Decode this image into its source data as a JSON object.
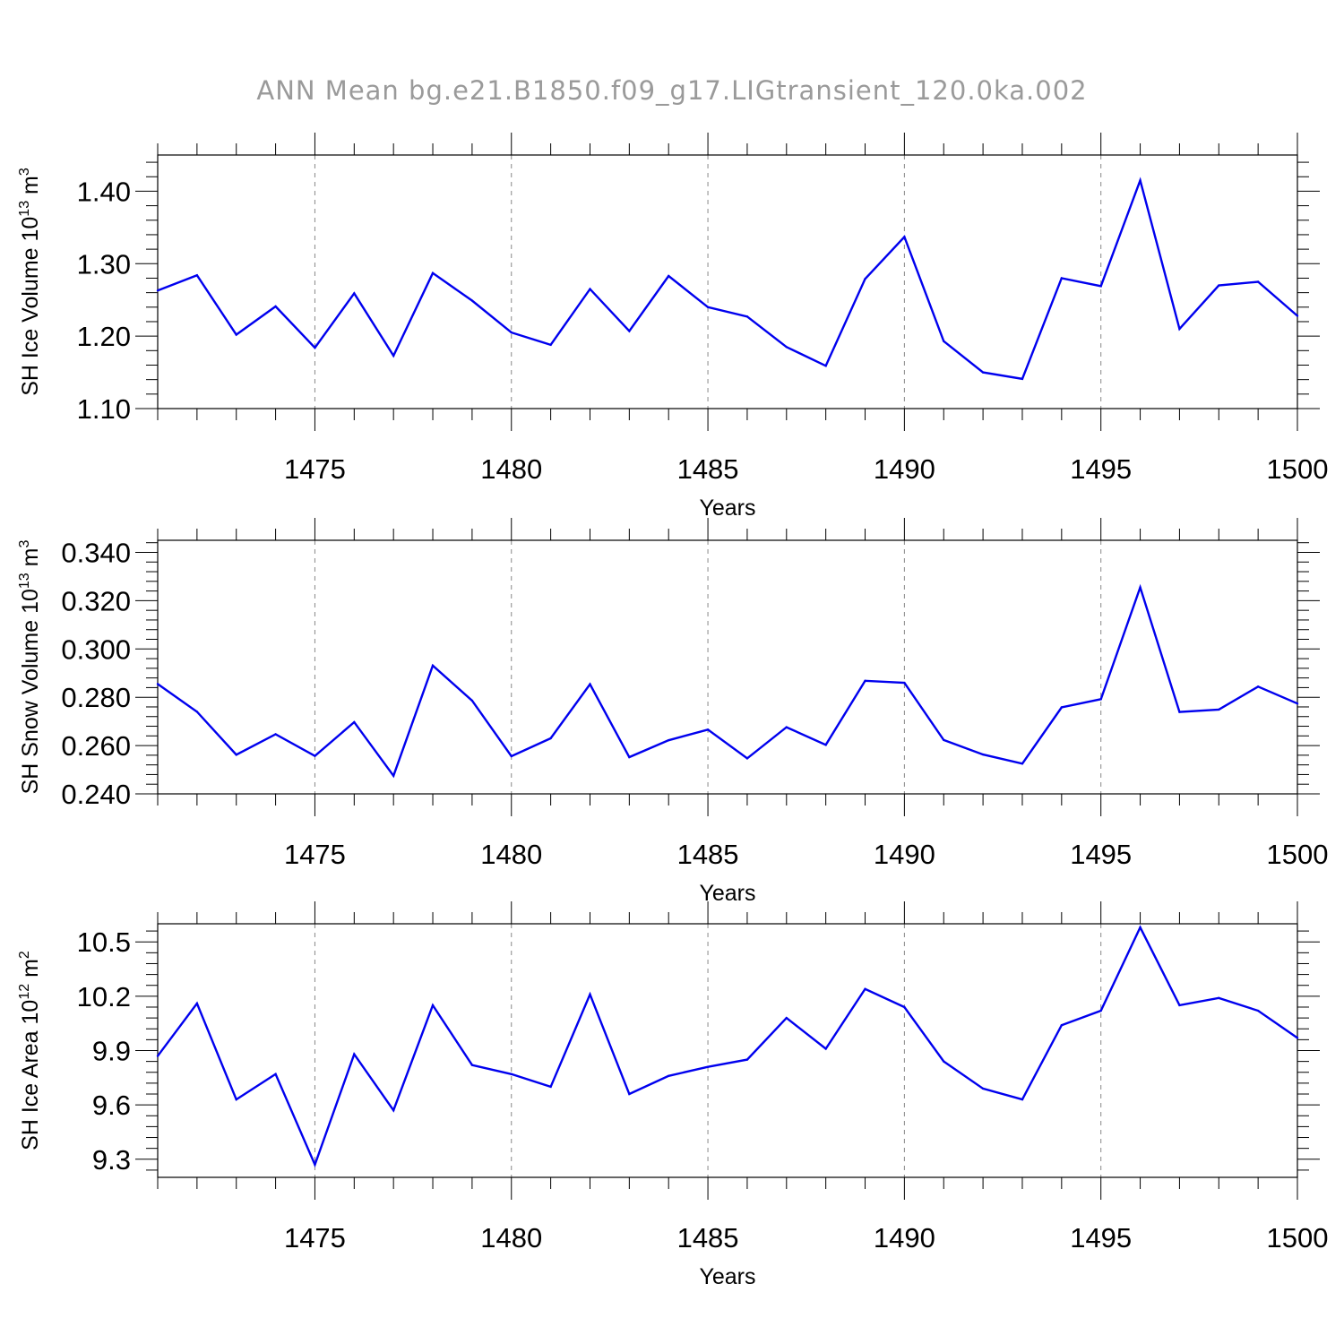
{
  "title": "ANN Mean bg.e21.B1850.f09_g17.LIGtransient_120.0ka.002",
  "colors": {
    "line": "#0000ee",
    "axis": "#000000",
    "grid": "#888888",
    "title": "#9a9a9a"
  },
  "chart_data": [
    {
      "type": "line",
      "xlabel": "Years",
      "ylabel": "SH Ice Volume 10",
      "ylabel_exp": "13",
      "ylabel_unit": " m",
      "ylabel_unit_exp": "3",
      "xlim": [
        1471,
        1500
      ],
      "ylim": [
        1.1,
        1.45
      ],
      "yticks": [
        1.1,
        1.2,
        1.3,
        1.4
      ],
      "ytick_labels": [
        "1.10",
        "1.20",
        "1.30",
        "1.40"
      ],
      "xticks": [
        1475,
        1480,
        1485,
        1490,
        1495,
        1500
      ],
      "xtick_labels": [
        "1475",
        "1480",
        "1485",
        "1490",
        "1495",
        "1500"
      ],
      "grid": "vertical dashed at major x ticks",
      "series": [
        {
          "x": [
            1471,
            1472,
            1473,
            1474,
            1475,
            1476,
            1477,
            1478,
            1479,
            1480,
            1481,
            1482,
            1483,
            1484,
            1485,
            1486,
            1487,
            1488,
            1489,
            1490,
            1491,
            1492,
            1493,
            1494,
            1495,
            1496,
            1497,
            1498,
            1499,
            1500
          ],
          "values": [
            1.263,
            1.284,
            1.202,
            1.241,
            1.184,
            1.259,
            1.173,
            1.287,
            1.249,
            1.205,
            1.188,
            1.265,
            1.207,
            1.283,
            1.24,
            1.227,
            1.185,
            1.159,
            1.279,
            1.337,
            1.193,
            1.15,
            1.141,
            1.28,
            1.269,
            1.415,
            1.21,
            1.27,
            1.275,
            1.228
          ]
        }
      ]
    },
    {
      "type": "line",
      "xlabel": "Years",
      "ylabel": "SH Snow Volume 10",
      "ylabel_exp": "13",
      "ylabel_unit": " m",
      "ylabel_unit_exp": "3",
      "xlim": [
        1471,
        1500
      ],
      "ylim": [
        0.24,
        0.345
      ],
      "yticks": [
        0.24,
        0.26,
        0.28,
        0.3,
        0.32,
        0.34
      ],
      "ytick_labels": [
        "0.240",
        "0.260",
        "0.280",
        "0.300",
        "0.320",
        "0.340"
      ],
      "xticks": [
        1475,
        1480,
        1485,
        1490,
        1495,
        1500
      ],
      "xtick_labels": [
        "1475",
        "1480",
        "1485",
        "1490",
        "1495",
        "1500"
      ],
      "grid": "vertical dashed at major x ticks",
      "series": [
        {
          "x": [
            1471,
            1472,
            1473,
            1474,
            1475,
            1476,
            1477,
            1478,
            1479,
            1480,
            1481,
            1482,
            1483,
            1484,
            1485,
            1486,
            1487,
            1488,
            1489,
            1490,
            1491,
            1492,
            1493,
            1494,
            1495,
            1496,
            1497,
            1498,
            1499,
            1500
          ],
          "values": [
            0.2855,
            0.274,
            0.2562,
            0.2647,
            0.2557,
            0.2697,
            0.2475,
            0.2931,
            0.2786,
            0.2556,
            0.263,
            0.2854,
            0.2552,
            0.2622,
            0.2666,
            0.2547,
            0.2676,
            0.2603,
            0.2868,
            0.286,
            0.2623,
            0.2563,
            0.2525,
            0.2758,
            0.2792,
            0.3255,
            0.2739,
            0.2749,
            0.2844,
            0.2774
          ]
        }
      ]
    },
    {
      "type": "line",
      "xlabel": "Years",
      "ylabel": "SH Ice Area 10",
      "ylabel_exp": "12",
      "ylabel_unit": " m",
      "ylabel_unit_exp": "2",
      "xlim": [
        1471,
        1500
      ],
      "ylim": [
        9.2,
        10.6
      ],
      "yticks": [
        9.3,
        9.6,
        9.9,
        10.2,
        10.5
      ],
      "ytick_labels": [
        "9.3",
        "9.6",
        "9.9",
        "10.2",
        "10.5"
      ],
      "xticks": [
        1475,
        1480,
        1485,
        1490,
        1495,
        1500
      ],
      "xtick_labels": [
        "1475",
        "1480",
        "1485",
        "1490",
        "1495",
        "1500"
      ],
      "grid": "vertical dashed at major x ticks",
      "series": [
        {
          "x": [
            1471,
            1472,
            1473,
            1474,
            1475,
            1476,
            1477,
            1478,
            1479,
            1480,
            1481,
            1482,
            1483,
            1484,
            1485,
            1486,
            1487,
            1488,
            1489,
            1490,
            1491,
            1492,
            1493,
            1494,
            1495,
            1496,
            1497,
            1498,
            1499,
            1500
          ],
          "values": [
            9.87,
            10.16,
            9.63,
            9.77,
            9.27,
            9.88,
            9.57,
            10.15,
            9.82,
            9.77,
            9.7,
            10.21,
            9.66,
            9.76,
            9.81,
            9.85,
            10.08,
            9.91,
            10.24,
            10.14,
            9.84,
            9.69,
            9.63,
            10.04,
            10.12,
            10.58,
            10.15,
            10.19,
            10.12,
            9.97
          ]
        }
      ]
    }
  ]
}
